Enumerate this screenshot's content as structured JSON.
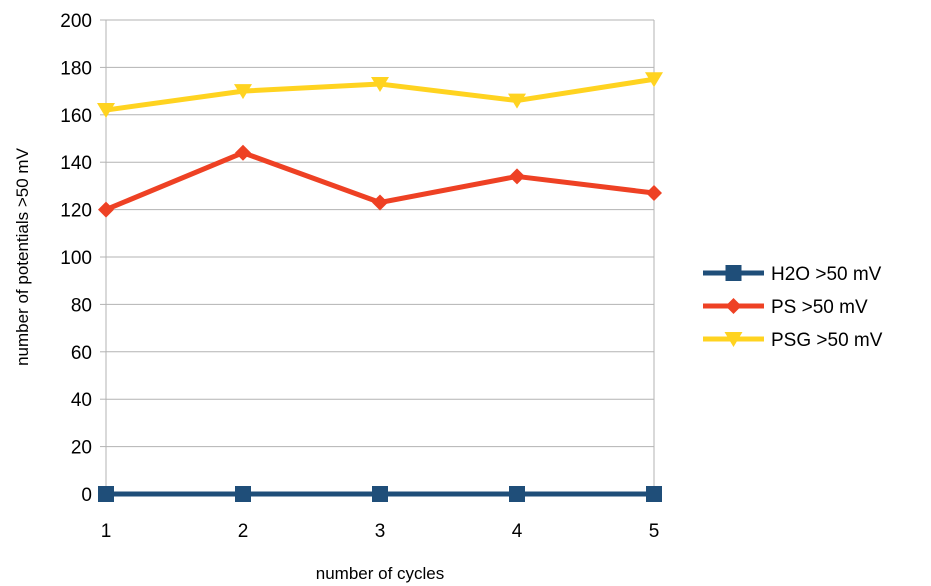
{
  "chart_data": {
    "type": "line",
    "title": "",
    "xlabel": "number of cycles",
    "ylabel": "number of potentials >50 mV",
    "categories": [
      "1",
      "2",
      "3",
      "4",
      "5"
    ],
    "ylim": [
      0,
      200
    ],
    "yticks": [
      0,
      20,
      40,
      60,
      80,
      100,
      120,
      140,
      160,
      180,
      200
    ],
    "grid": "horizontal",
    "legend_position": "right",
    "series": [
      {
        "name": "H2O >50 mV",
        "values": [
          0,
          0,
          0,
          0,
          0
        ],
        "color": "#1f4e79",
        "marker": "square"
      },
      {
        "name": "PS >50 mV",
        "values": [
          120,
          144,
          123,
          134,
          127
        ],
        "color": "#ee4124",
        "marker": "diamond"
      },
      {
        "name": "PSG >50 mV",
        "values": [
          162,
          170,
          173,
          166,
          175
        ],
        "color": "#ffd320",
        "marker": "triangle-down"
      }
    ]
  }
}
